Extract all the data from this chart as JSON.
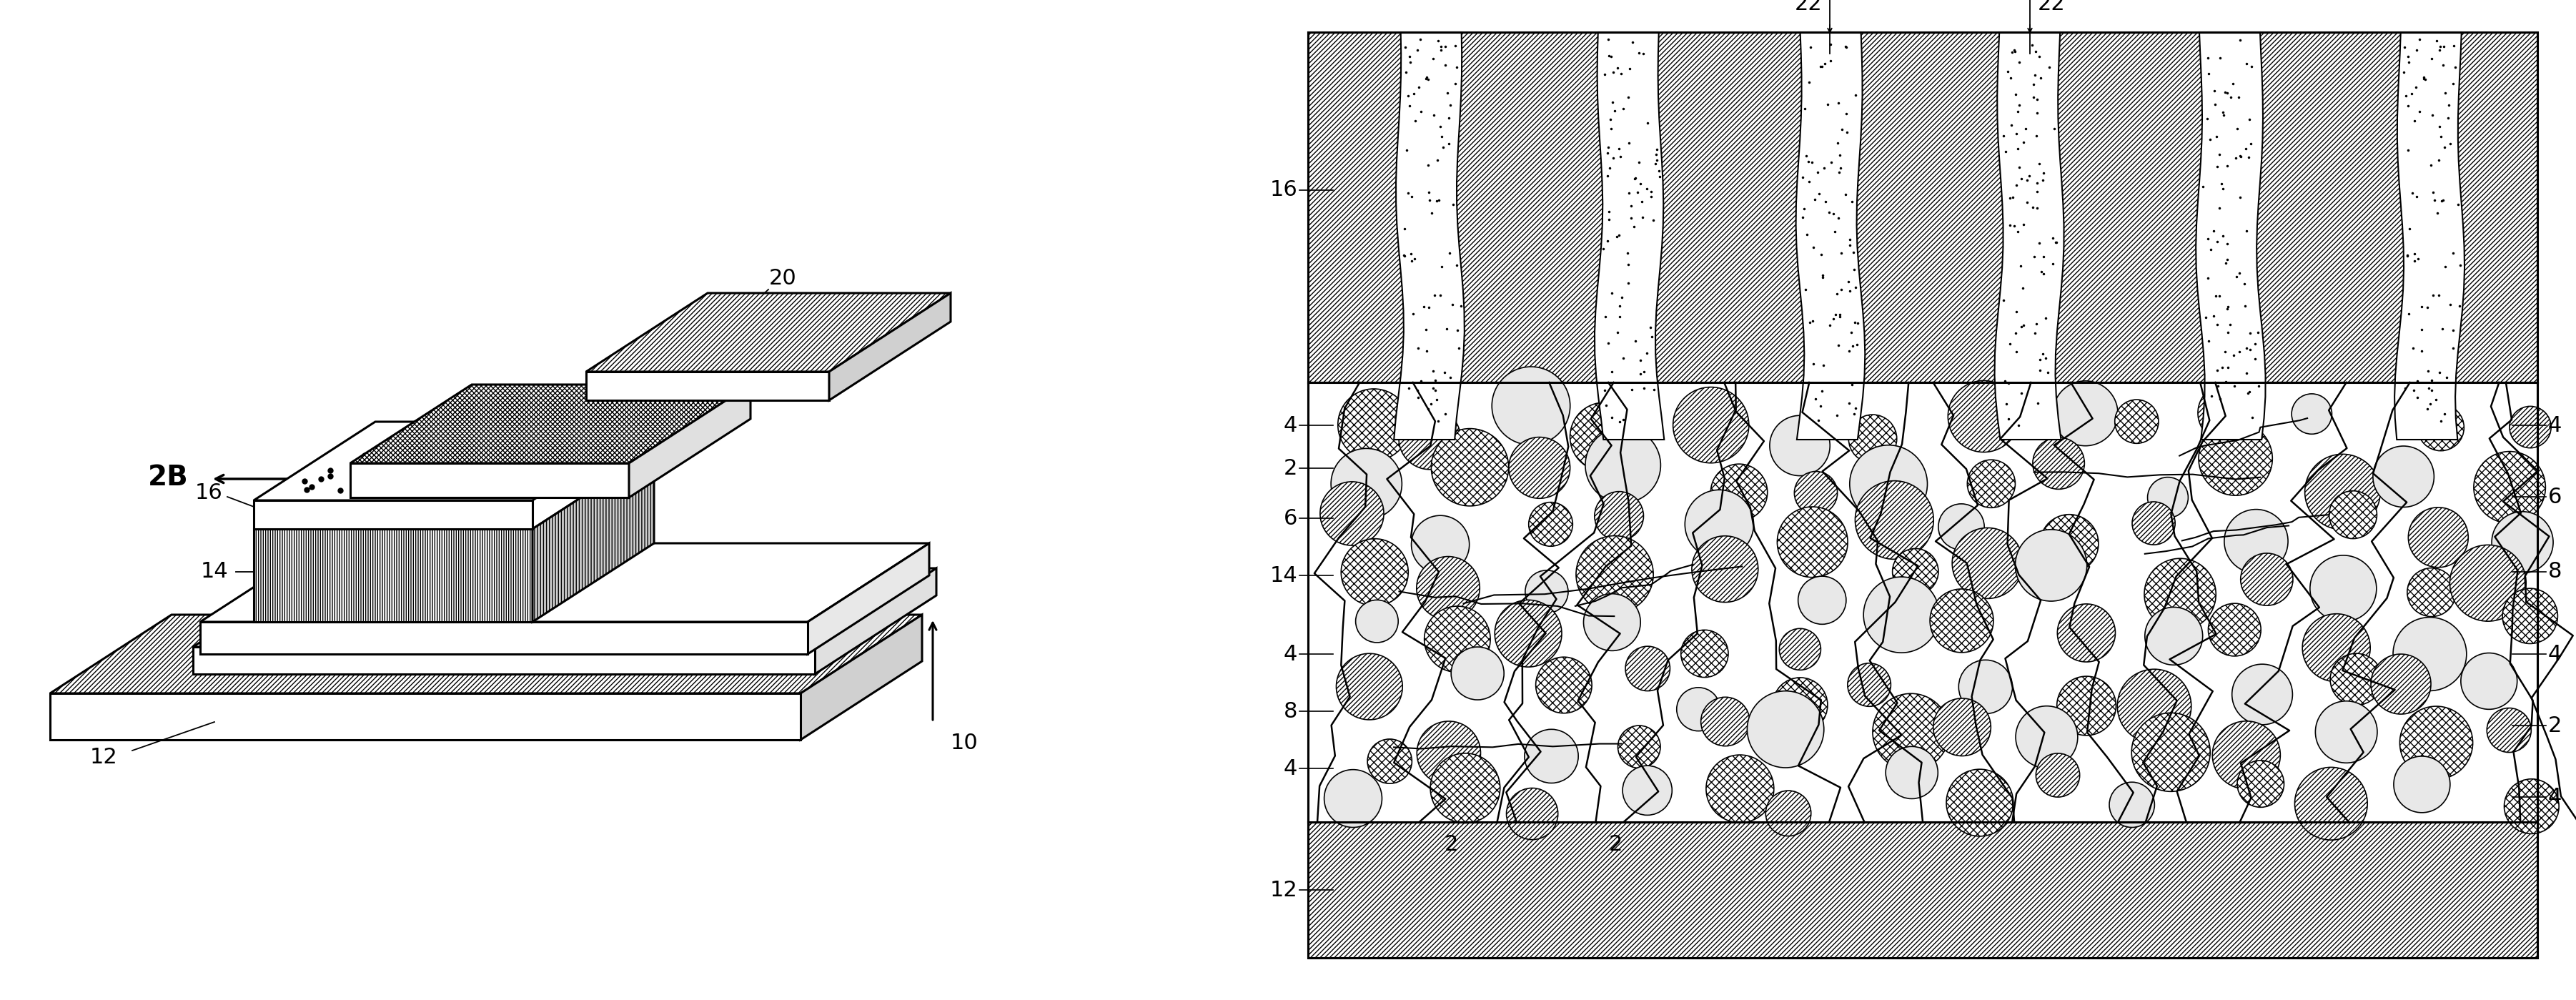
{
  "bg_color": "#ffffff",
  "fig_width": 36.05,
  "fig_height": 13.99,
  "lw": 1.8,
  "lw_thick": 2.2,
  "fontsize": 22,
  "fontsize_2B": 28
}
